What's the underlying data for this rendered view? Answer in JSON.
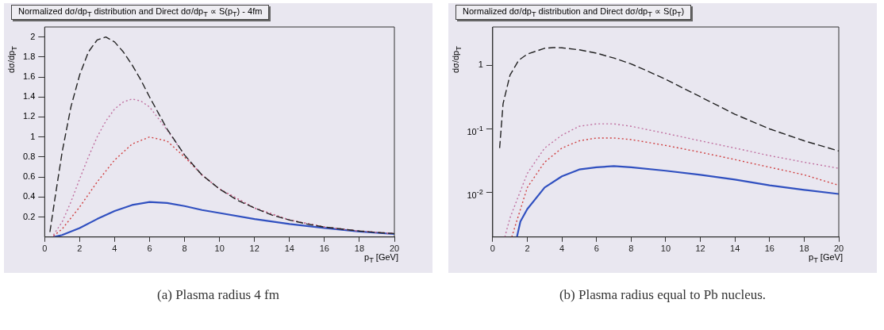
{
  "chart_data": [
    {
      "type": "line",
      "title": "Normalized dσ/dp$_{T}$ distribution and Direct dσ/dp$_{T}$ ∝ S(p$_{T}$) - 4fm",
      "xlabel": "p$_{T}$ [GeV]",
      "ylabel": "dσ/dp$_{T}$",
      "xlim": [
        0,
        20
      ],
      "xticks": [
        0,
        2,
        4,
        6,
        8,
        10,
        12,
        14,
        16,
        18,
        20
      ],
      "ylim": [
        0,
        2.1
      ],
      "yticks": [
        0.2,
        0.4,
        0.6,
        0.8,
        1,
        1.2,
        1.4,
        1.6,
        1.8,
        2
      ],
      "annotations": [
        "(a) Plasma radius 4 fm"
      ],
      "marker": "none",
      "series": [
        {
          "color": "#222222",
          "line_style": "dashed",
          "x": [
            0.3,
            0.6,
            1,
            1.5,
            2,
            2.5,
            3,
            3.5,
            4,
            4.5,
            5,
            5.5,
            6,
            7,
            8,
            9,
            10,
            11,
            12,
            13,
            14,
            15,
            16,
            17,
            18,
            19,
            20
          ],
          "values": [
            0.05,
            0.4,
            0.85,
            1.3,
            1.62,
            1.85,
            1.97,
            2.0,
            1.95,
            1.85,
            1.72,
            1.57,
            1.4,
            1.08,
            0.82,
            0.62,
            0.48,
            0.37,
            0.29,
            0.22,
            0.17,
            0.13,
            0.1,
            0.08,
            0.06,
            0.045,
            0.035
          ]
        },
        {
          "color": "#c070a0",
          "line_style": "dotted",
          "x": [
            0.5,
            1,
            1.5,
            2,
            2.5,
            3,
            3.5,
            4,
            4.5,
            5,
            5.5,
            6,
            7,
            8,
            9,
            10,
            12,
            14,
            16,
            18,
            20
          ],
          "values": [
            0.02,
            0.15,
            0.35,
            0.58,
            0.8,
            1.0,
            1.16,
            1.28,
            1.35,
            1.38,
            1.36,
            1.3,
            1.07,
            0.82,
            0.62,
            0.48,
            0.29,
            0.17,
            0.1,
            0.06,
            0.035
          ]
        },
        {
          "color": "#d04040",
          "line_style": "dotted",
          "x": [
            0.5,
            1,
            2,
            3,
            4,
            5,
            6,
            7,
            8,
            9,
            10,
            12,
            14,
            16,
            18,
            20
          ],
          "values": [
            0.01,
            0.08,
            0.3,
            0.55,
            0.77,
            0.93,
            1.0,
            0.96,
            0.8,
            0.62,
            0.48,
            0.29,
            0.17,
            0.1,
            0.06,
            0.035
          ]
        },
        {
          "color": "#3050c0",
          "line_style": "solid",
          "x": [
            0.5,
            1,
            2,
            3,
            4,
            5,
            6,
            7,
            8,
            9,
            10,
            12,
            14,
            16,
            18,
            20
          ],
          "values": [
            0,
            0.02,
            0.09,
            0.18,
            0.26,
            0.32,
            0.35,
            0.34,
            0.31,
            0.27,
            0.24,
            0.18,
            0.13,
            0.09,
            0.055,
            0.03
          ]
        }
      ]
    },
    {
      "type": "line",
      "title": "Normalized dσ/dp$_{T}$ distribution and Direct dσ/dp$_{T}$ ∝ S(p$_{T}$)",
      "xlabel": "p$_{T}$ [GeV]",
      "ylabel": "dσ/dp$_{T}$",
      "log": "y",
      "xlim": [
        0,
        20
      ],
      "xticks": [
        0,
        2,
        4,
        6,
        8,
        10,
        12,
        14,
        16,
        18,
        20
      ],
      "ylim": [
        0.002,
        4
      ],
      "yticks": [
        {
          "value": 0.01,
          "label": "10$^{-2}$"
        },
        {
          "value": 0.1,
          "label": "10$^{-1}$"
        },
        1
      ],
      "annotations": [
        "(b) Plasma radius equal to Pb nucleus."
      ],
      "marker": "none",
      "series": [
        {
          "color": "#222222",
          "line_style": "dashed",
          "x": [
            0.4,
            0.6,
            1,
            1.5,
            2,
            3,
            3.5,
            4,
            5,
            6,
            7,
            8,
            9,
            10,
            12,
            14,
            16,
            18,
            20
          ],
          "values": [
            0.05,
            0.25,
            0.7,
            1.2,
            1.5,
            1.85,
            1.9,
            1.88,
            1.75,
            1.55,
            1.3,
            1.05,
            0.8,
            0.6,
            0.32,
            0.17,
            0.1,
            0.065,
            0.045
          ]
        },
        {
          "color": "#c070a0",
          "line_style": "dotted",
          "x": [
            0.7,
            1,
            2,
            3,
            4,
            5,
            6,
            7,
            8,
            10,
            12,
            14,
            16,
            18,
            20
          ],
          "values": [
            0.002,
            0.004,
            0.02,
            0.05,
            0.08,
            0.11,
            0.12,
            0.12,
            0.11,
            0.085,
            0.065,
            0.05,
            0.038,
            0.03,
            0.024
          ]
        },
        {
          "color": "#d04040",
          "line_style": "dotted",
          "x": [
            1.1,
            2,
            3,
            4,
            5,
            6,
            7,
            8,
            10,
            12,
            14,
            16,
            18,
            20
          ],
          "values": [
            0.002,
            0.012,
            0.03,
            0.05,
            0.065,
            0.072,
            0.072,
            0.068,
            0.055,
            0.043,
            0.033,
            0.025,
            0.019,
            0.013
          ]
        },
        {
          "color": "#3050c0",
          "line_style": "solid",
          "x": [
            1.4,
            1.6,
            2,
            3,
            4,
            5,
            6,
            7,
            8,
            10,
            12,
            14,
            16,
            18,
            20
          ],
          "values": [
            0.002,
            0.0035,
            0.0055,
            0.012,
            0.018,
            0.023,
            0.025,
            0.026,
            0.025,
            0.022,
            0.019,
            0.016,
            0.013,
            0.011,
            0.0095
          ]
        }
      ]
    }
  ]
}
